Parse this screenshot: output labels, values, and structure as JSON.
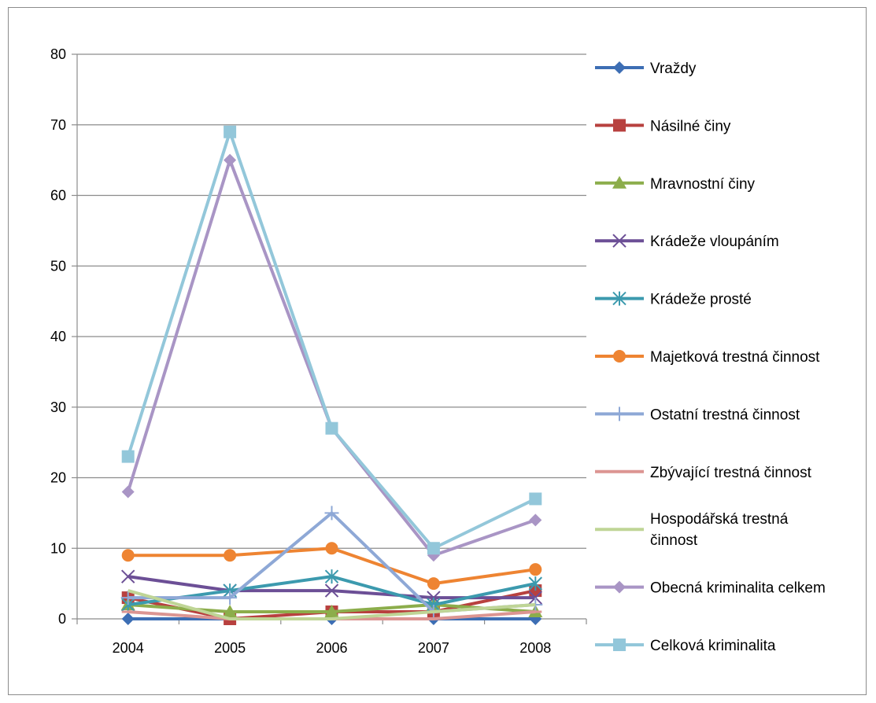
{
  "chart_data": {
    "type": "line",
    "title": "",
    "xlabel": "",
    "ylabel": "",
    "categories": [
      "2004",
      "2005",
      "2006",
      "2007",
      "2008"
    ],
    "ylim": [
      0,
      80
    ],
    "yticks": [
      0,
      10,
      20,
      30,
      40,
      50,
      60,
      70,
      80
    ],
    "grid": true,
    "legend_position": "right",
    "series": [
      {
        "name": "Vraždy",
        "name_lines": [
          "Vraždy"
        ],
        "color": "#3d6eb4",
        "marker": "diamond",
        "values": [
          0,
          0,
          0,
          0,
          0
        ]
      },
      {
        "name": "Násilné činy",
        "name_lines": [
          "Násilné činy"
        ],
        "color": "#b8413f",
        "marker": "square",
        "values": [
          3,
          0,
          1,
          1,
          4
        ]
      },
      {
        "name": "Mravnostní činy",
        "name_lines": [
          "Mravnostní činy"
        ],
        "color": "#8cad4b",
        "marker": "triangle",
        "values": [
          2,
          1,
          1,
          2,
          1
        ]
      },
      {
        "name": "Krádeže vloupáním",
        "name_lines": [
          "Krádeže vloupáním"
        ],
        "color": "#6c4f96",
        "marker": "x",
        "values": [
          6,
          4,
          4,
          3,
          3
        ]
      },
      {
        "name": "Krádeže prosté",
        "name_lines": [
          "Krádeže prosté"
        ],
        "color": "#3c9aae",
        "marker": "star",
        "values": [
          2,
          4,
          6,
          2,
          5
        ]
      },
      {
        "name": "Majetková trestná činnost",
        "name_lines": [
          "Majetková trestná činnost"
        ],
        "color": "#ee8432",
        "marker": "circle",
        "values": [
          9,
          9,
          10,
          5,
          7
        ]
      },
      {
        "name": "Ostatní trestná činnost",
        "name_lines": [
          "Ostatní trestná činnost"
        ],
        "color": "#8ea8d6",
        "marker": "plus",
        "values": [
          3,
          3,
          15,
          1,
          2
        ]
      },
      {
        "name": "Zbývající trestná činnost",
        "name_lines": [
          "Zbývající trestná činnost"
        ],
        "color": "#dc9592",
        "marker": "dash",
        "values": [
          1,
          0,
          0,
          0,
          1
        ]
      },
      {
        "name": "Hospodářská trestná činnost",
        "name_lines": [
          "Hospodářská trestná",
          "činnost"
        ],
        "color": "#bfd596",
        "marker": "none",
        "values": [
          4,
          0,
          0,
          1,
          2
        ]
      },
      {
        "name": "Obecná kriminalita celkem",
        "name_lines": [
          "Obecná kriminalita celkem"
        ],
        "color": "#a995c5",
        "marker": "diamond",
        "values": [
          18,
          65,
          27,
          9,
          14
        ]
      },
      {
        "name": "Celková kriminalita",
        "name_lines": [
          "Celková kriminalita"
        ],
        "color": "#93c7da",
        "marker": "square",
        "values": [
          23,
          69,
          27,
          10,
          17
        ]
      }
    ]
  }
}
